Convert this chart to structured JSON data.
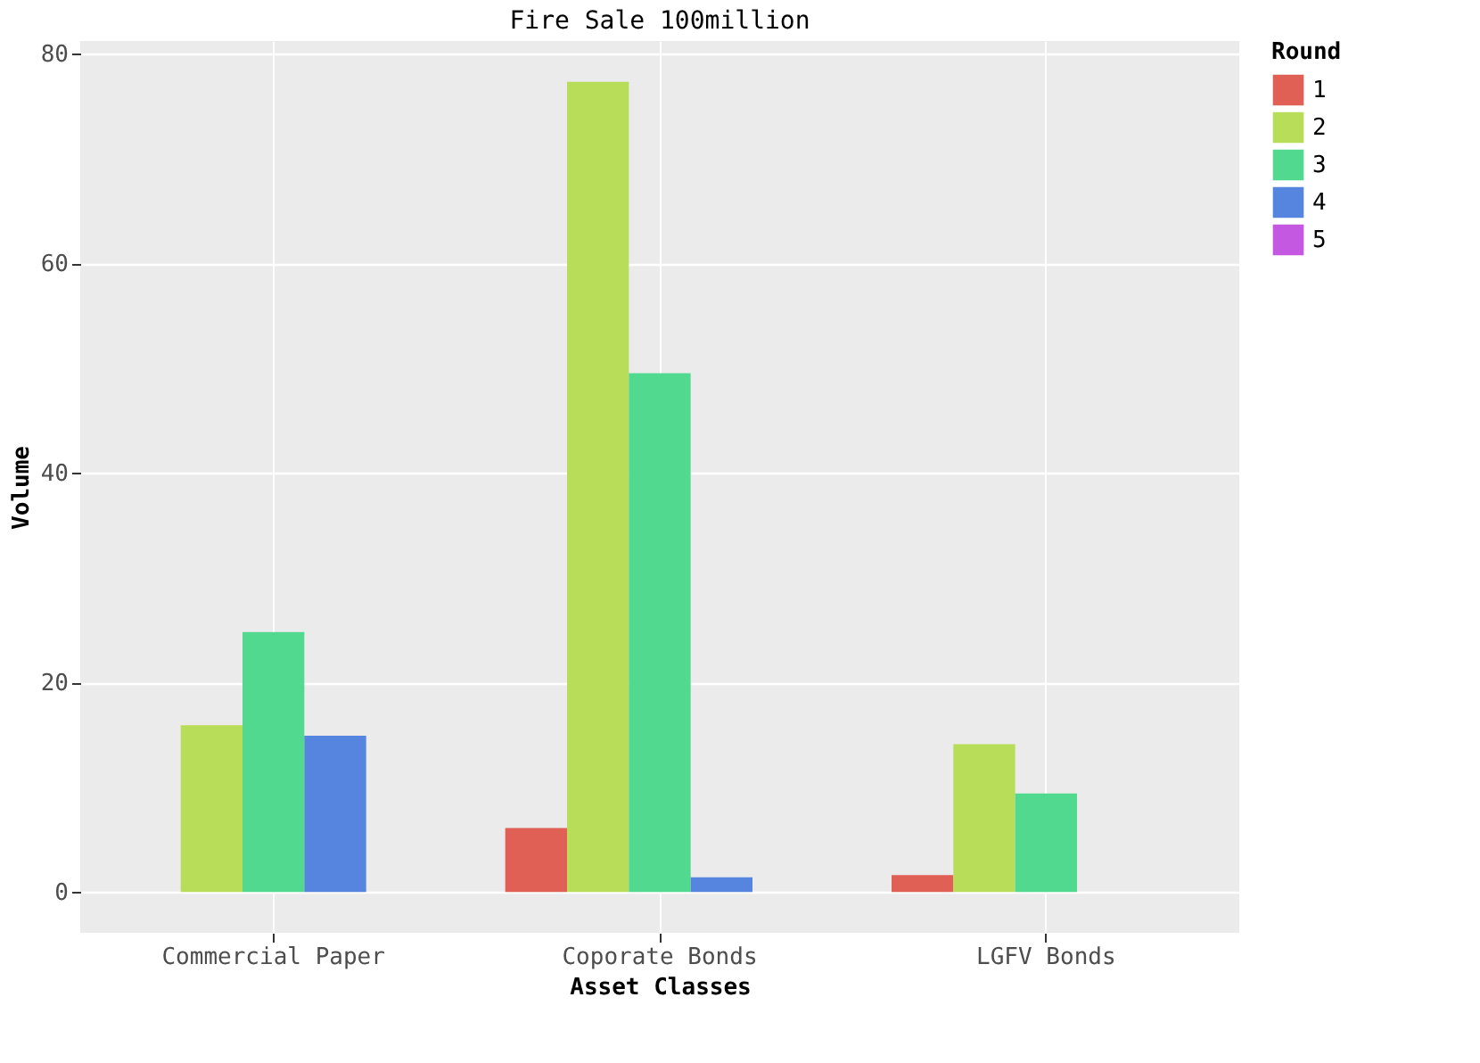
{
  "chart_data": {
    "type": "bar",
    "title": "Fire Sale   100million",
    "xlabel": "Asset Classes",
    "ylabel": "Volume",
    "legend_title": "Round",
    "categories": [
      "Commercial Paper",
      "Coporate Bonds",
      "LGFV Bonds"
    ],
    "series": [
      {
        "name": "1",
        "color": "#e06055",
        "values": [
          0,
          6.1,
          1.6
        ]
      },
      {
        "name": "2",
        "color": "#b8dd58",
        "values": [
          15.9,
          77.3,
          14.1
        ]
      },
      {
        "name": "3",
        "color": "#52d990",
        "values": [
          24.8,
          49.5,
          9.4
        ]
      },
      {
        "name": "4",
        "color": "#5585df",
        "values": [
          14.9,
          1.4,
          0
        ]
      },
      {
        "name": "5",
        "color": "#c558e0",
        "values": [
          0,
          0,
          0
        ]
      }
    ],
    "ylim": [
      -3.9,
      81.2
    ],
    "yticks": [
      0,
      20,
      40,
      60,
      80
    ],
    "grid": true,
    "legend": "right"
  }
}
